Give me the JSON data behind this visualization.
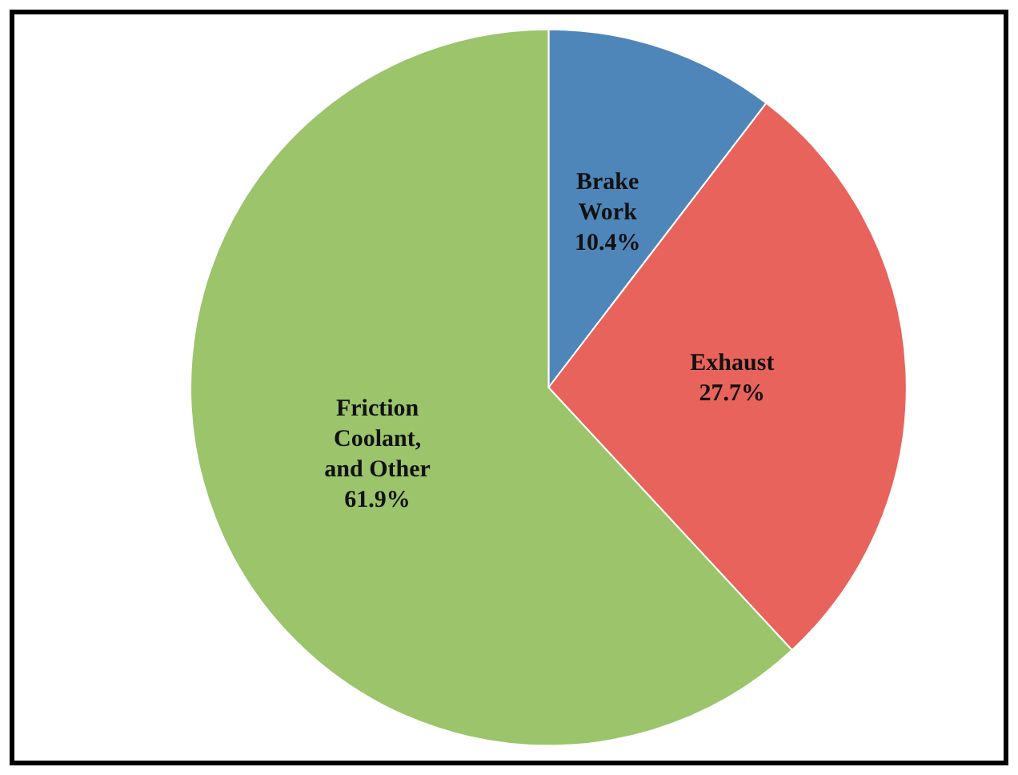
{
  "chart_data": {
    "type": "pie",
    "categories": [
      "Brake Work",
      "Exhaust",
      "Friction Coolant, and Other"
    ],
    "values": [
      10.4,
      27.7,
      61.9
    ],
    "colors": [
      "#4f86b9",
      "#e8635b",
      "#9bc46b"
    ],
    "value_labels": [
      "10.4%",
      "27.7%",
      "61.9%"
    ],
    "legend": false
  }
}
